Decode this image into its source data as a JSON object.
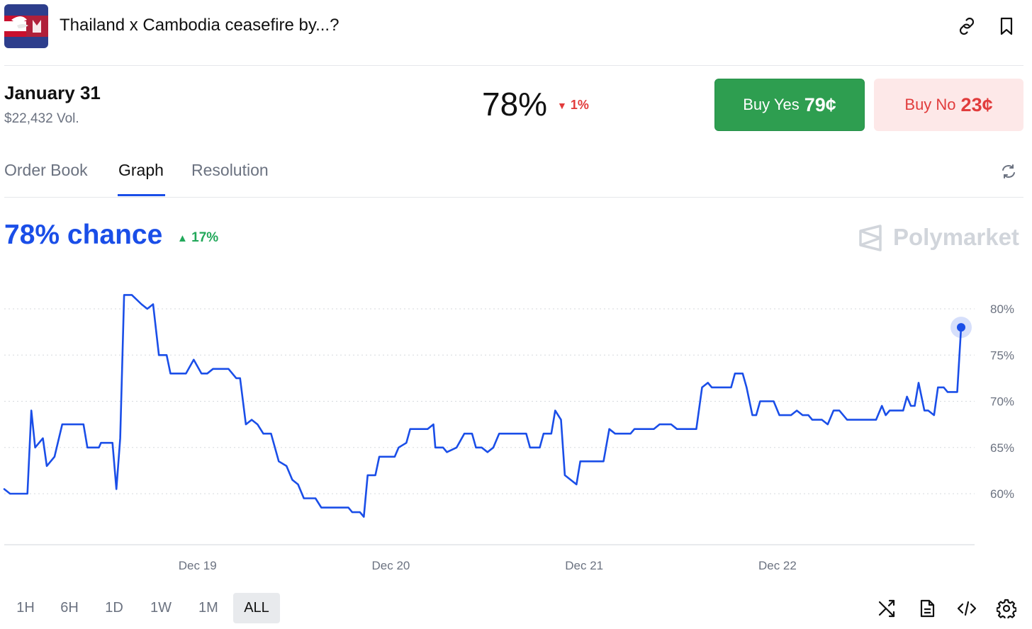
{
  "header": {
    "title": "Thailand x Cambodia ceasefire by...?",
    "icons": [
      "link-icon",
      "bookmark-icon"
    ]
  },
  "market": {
    "date": "January 31",
    "volume": "$22,432 Vol.",
    "probability": "78%",
    "change": "1%",
    "change_direction": "down"
  },
  "buttons": {
    "yes_label": "Buy Yes",
    "yes_price": "79¢",
    "no_label": "Buy No",
    "no_price": "23¢"
  },
  "tabs": [
    {
      "label": "Order Book"
    },
    {
      "label": "Graph",
      "active": true
    },
    {
      "label": "Resolution"
    }
  ],
  "graph": {
    "chance": "78% chance",
    "change": "17%",
    "change_direction": "up",
    "watermark": "Polymarket"
  },
  "chart_data": {
    "type": "line",
    "series": [
      {
        "color": "#1a4ee8",
        "points": [
          [
            0.0,
            60.5
          ],
          [
            0.03,
            60
          ],
          [
            0.12,
            60
          ],
          [
            0.14,
            69
          ],
          [
            0.16,
            65
          ],
          [
            0.2,
            66
          ],
          [
            0.22,
            63
          ],
          [
            0.26,
            64
          ],
          [
            0.3,
            67.5
          ],
          [
            0.41,
            67.5
          ],
          [
            0.43,
            65
          ],
          [
            0.49,
            65
          ],
          [
            0.5,
            65.5
          ],
          [
            0.56,
            65.5
          ],
          [
            0.58,
            60.5
          ],
          [
            0.6,
            66
          ],
          [
            0.62,
            81.5
          ],
          [
            0.66,
            81.5
          ],
          [
            0.71,
            80.5
          ],
          [
            0.74,
            80
          ],
          [
            0.77,
            80.5
          ],
          [
            0.8,
            75
          ],
          [
            0.84,
            75
          ],
          [
            0.86,
            73
          ],
          [
            0.94,
            73
          ],
          [
            0.98,
            74.5
          ],
          [
            1.02,
            73
          ],
          [
            1.05,
            73
          ],
          [
            1.08,
            73.5
          ],
          [
            1.16,
            73.5
          ],
          [
            1.2,
            72.5
          ],
          [
            1.22,
            72.5
          ],
          [
            1.25,
            67.5
          ],
          [
            1.28,
            68
          ],
          [
            1.31,
            67.5
          ],
          [
            1.34,
            66.5
          ],
          [
            1.38,
            66.5
          ],
          [
            1.42,
            63.5
          ],
          [
            1.46,
            63
          ],
          [
            1.49,
            61.5
          ],
          [
            1.52,
            61
          ],
          [
            1.55,
            59.5
          ],
          [
            1.61,
            59.5
          ],
          [
            1.64,
            58.5
          ],
          [
            1.78,
            58.5
          ],
          [
            1.8,
            58
          ],
          [
            1.84,
            58
          ],
          [
            1.86,
            57.5
          ],
          [
            1.88,
            62
          ],
          [
            1.92,
            62
          ],
          [
            1.94,
            64
          ],
          [
            2.02,
            64
          ],
          [
            2.04,
            65
          ],
          [
            2.08,
            65.5
          ],
          [
            2.1,
            67
          ],
          [
            2.19,
            67
          ],
          [
            2.22,
            67.5
          ],
          [
            2.23,
            65
          ],
          [
            2.27,
            65
          ],
          [
            2.29,
            64.5
          ],
          [
            2.34,
            65
          ],
          [
            2.38,
            66.5
          ],
          [
            2.42,
            66.5
          ],
          [
            2.44,
            65
          ],
          [
            2.47,
            65
          ],
          [
            2.5,
            64.5
          ],
          [
            2.53,
            65
          ],
          [
            2.56,
            66.5
          ],
          [
            2.7,
            66.5
          ],
          [
            2.72,
            65
          ],
          [
            2.77,
            65
          ],
          [
            2.79,
            66.5
          ],
          [
            2.83,
            66.5
          ],
          [
            2.85,
            69
          ],
          [
            2.88,
            68
          ],
          [
            2.9,
            62
          ],
          [
            2.93,
            61.5
          ],
          [
            2.96,
            61
          ],
          [
            2.98,
            63.5
          ],
          [
            3.1,
            63.5
          ],
          [
            3.13,
            67
          ],
          [
            3.16,
            66.5
          ],
          [
            3.24,
            66.5
          ],
          [
            3.26,
            67
          ],
          [
            3.36,
            67
          ],
          [
            3.39,
            67.5
          ],
          [
            3.45,
            67.5
          ],
          [
            3.48,
            67
          ],
          [
            3.58,
            67
          ],
          [
            3.61,
            71.5
          ],
          [
            3.64,
            72
          ],
          [
            3.66,
            71.5
          ],
          [
            3.76,
            71.5
          ],
          [
            3.78,
            73
          ],
          [
            3.82,
            73
          ],
          [
            3.84,
            71.5
          ],
          [
            3.87,
            68.5
          ],
          [
            3.89,
            68.5
          ],
          [
            3.91,
            70
          ],
          [
            3.98,
            70
          ],
          [
            4.01,
            68.5
          ],
          [
            4.07,
            68.5
          ],
          [
            4.1,
            69
          ],
          [
            4.13,
            68.5
          ],
          [
            4.16,
            68.5
          ],
          [
            4.18,
            68
          ],
          [
            4.23,
            68
          ],
          [
            4.26,
            67.5
          ],
          [
            4.29,
            69
          ],
          [
            4.32,
            69
          ],
          [
            4.36,
            68
          ],
          [
            4.51,
            68
          ],
          [
            4.54,
            69.5
          ],
          [
            4.56,
            68.5
          ],
          [
            4.58,
            69
          ],
          [
            4.65,
            69
          ],
          [
            4.67,
            70.5
          ],
          [
            4.69,
            69.5
          ],
          [
            4.71,
            69.5
          ],
          [
            4.73,
            72
          ],
          [
            4.76,
            69
          ],
          [
            4.78,
            69
          ],
          [
            4.81,
            68.5
          ],
          [
            4.83,
            71.5
          ],
          [
            4.86,
            71.5
          ],
          [
            4.88,
            71
          ],
          [
            4.93,
            71
          ],
          [
            4.95,
            78
          ]
        ]
      }
    ],
    "x_ticks": [
      "Dec 19",
      "Dec 20",
      "Dec 21",
      "Dec 22"
    ],
    "y_ticks": [
      "60%",
      "65%",
      "70%",
      "75%",
      "80%"
    ],
    "y_values": [
      60,
      65,
      70,
      75,
      80
    ],
    "ylim": [
      55,
      84
    ],
    "grid": "horizontal-dotted",
    "last_value": 78
  },
  "ranges": [
    {
      "label": "1H"
    },
    {
      "label": "6H"
    },
    {
      "label": "1D"
    },
    {
      "label": "1W"
    },
    {
      "label": "1M"
    },
    {
      "label": "ALL",
      "active": true
    }
  ],
  "tools": [
    "shuffle-icon",
    "document-icon",
    "embed-code-icon",
    "settings-icon"
  ]
}
